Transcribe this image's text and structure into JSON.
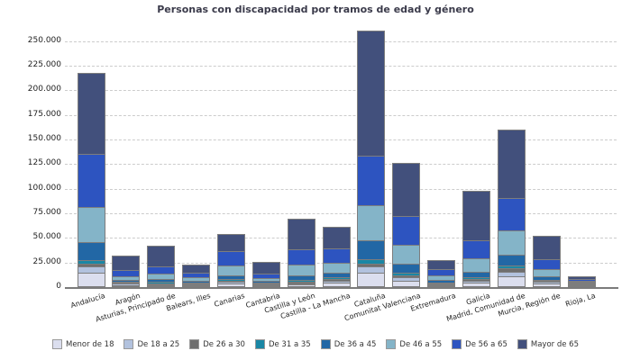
{
  "title": "Personas con discapacidad por tramos de edad y género",
  "chart_data": {
    "type": "bar",
    "stacked": true,
    "title": "Personas con discapacidad por tramos de edad y género",
    "xlabel": "",
    "ylabel": "",
    "ylim": [
      0,
      250000
    ],
    "grid": "horizontal-dashed",
    "legend_position": "bottom",
    "y_ticks": [
      "0",
      "25.000",
      "50.000",
      "75.000",
      "100.000",
      "125.000",
      "150.000",
      "175.000",
      "200.000",
      "225.000",
      "250.000"
    ],
    "categories": [
      "Andalucía",
      "Aragón",
      "Asturias, Principado de",
      "Balears, Illes",
      "Canarias",
      "Cantabria",
      "Castilla y León",
      "Castilla - La Mancha",
      "Cataluña",
      "Comunitat Valenciana",
      "Extremadura",
      "Galicia",
      "Madrid, Comunidad de",
      "Murcia, Región de",
      "Rioja, La"
    ],
    "series": [
      {
        "name": "Menor de 18",
        "color": "#dbdeee",
        "values": [
          13500,
          1300,
          700,
          1200,
          2600,
          800,
          1700,
          3500,
          13500,
          5500,
          1200,
          3300,
          9800,
          2700,
          300
        ]
      },
      {
        "name": "De 18 a 25",
        "color": "#b2c2de",
        "values": [
          6500,
          1200,
          900,
          900,
          1700,
          700,
          1500,
          2400,
          6700,
          3700,
          1100,
          2400,
          5100,
          1500,
          250
        ]
      },
      {
        "name": "De 26 a 30",
        "color": "#6e6e6e",
        "values": [
          2500,
          700,
          1300,
          600,
          1200,
          500,
          1500,
          1200,
          2800,
          1800,
          700,
          1500,
          3400,
          800,
          200
        ]
      },
      {
        "name": "De 31 a 35",
        "color": "#1a87a5",
        "values": [
          4500,
          900,
          1500,
          800,
          1800,
          700,
          1800,
          1800,
          4500,
          2800,
          900,
          1800,
          3000,
          1000,
          250
        ]
      },
      {
        "name": "De 36 a 45",
        "color": "#2267a5",
        "values": [
          17500,
          2300,
          2300,
          1700,
          3700,
          1500,
          4200,
          5200,
          19500,
          8700,
          2400,
          6100,
          10700,
          3700,
          500
        ]
      },
      {
        "name": "De 46 a 55",
        "color": "#84b4c8",
        "values": [
          36500,
          3300,
          5500,
          3100,
          10500,
          3100,
          11500,
          10000,
          35500,
          19300,
          4600,
          13600,
          24400,
          7600,
          900
        ]
      },
      {
        "name": "De 56 a 65",
        "color": "#2d54c0",
        "values": [
          53500,
          6500,
          7500,
          5300,
          14000,
          4600,
          15300,
          14400,
          50500,
          29200,
          5900,
          18300,
          33400,
          9700,
          1800
        ]
      },
      {
        "name": "Mayor de 65",
        "color": "#42507c",
        "values": [
          83500,
          15300,
          22300,
          8900,
          19000,
          13100,
          32000,
          23000,
          127500,
          55500,
          10200,
          51000,
          70200,
          25000,
          3300
        ]
      }
    ]
  }
}
